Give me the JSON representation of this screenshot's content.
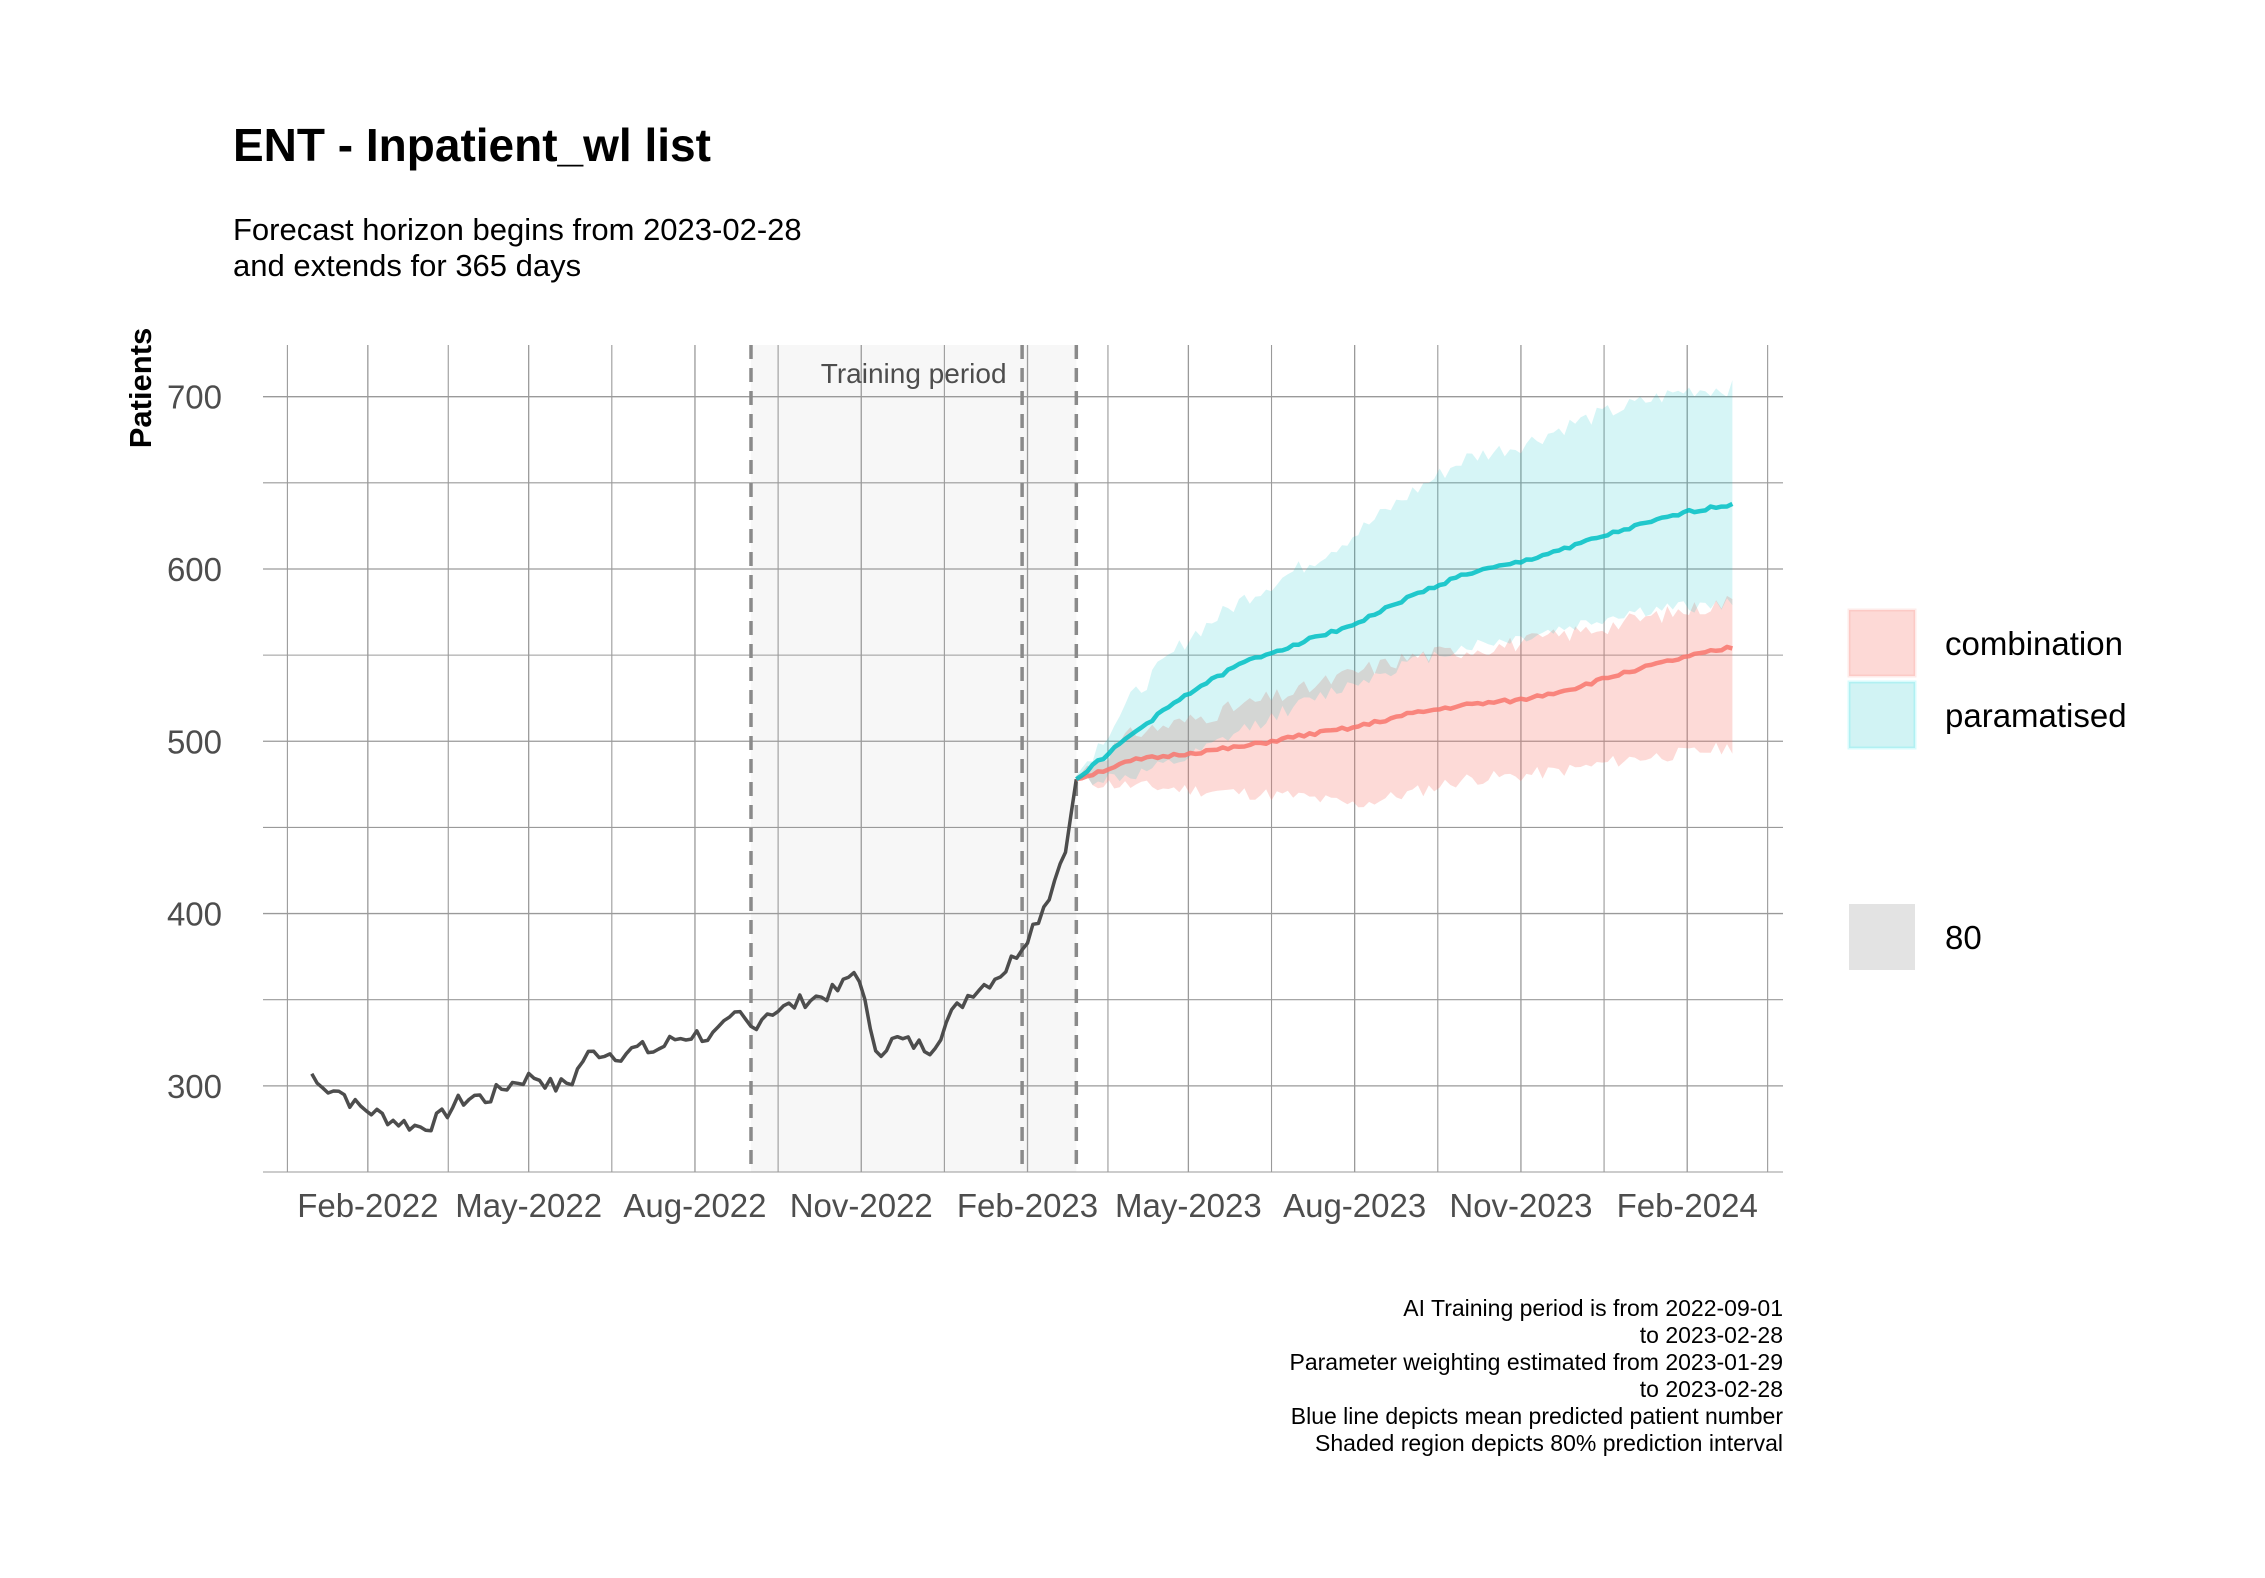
{
  "title": "ENT - Inpatient_wl list",
  "subtitle_lines": [
    "Forecast horizon begins from 2023-02-28",
    "and extends for 365 days"
  ],
  "caption_lines": [
    "AI Training period is from 2022-09-01",
    "to 2023-02-28",
    "Parameter weighting estimated from 2023-01-29",
    "to 2023-02-28",
    "Blue line depicts mean predicted patient number",
    "Shaded region depicts 80% prediction interval"
  ],
  "chart_data": {
    "type": "line",
    "title": "ENT - Inpatient_wl list",
    "xlabel": "",
    "ylabel": "Patients",
    "x_axis": "date",
    "xlim": [
      "2021-12-05",
      "2024-03-25"
    ],
    "ylim": [
      250,
      730
    ],
    "x_ticks": [
      "2022-02-01",
      "2022-05-01",
      "2022-08-01",
      "2022-11-01",
      "2023-02-01",
      "2023-05-01",
      "2023-08-01",
      "2023-11-01",
      "2024-02-01"
    ],
    "x_tick_labels": [
      "Feb-2022",
      "May-2022",
      "Aug-2022",
      "Nov-2022",
      "Feb-2023",
      "May-2023",
      "Aug-2023",
      "Nov-2023",
      "Feb-2024"
    ],
    "y_ticks": [
      300,
      400,
      500,
      600,
      700
    ],
    "grid": true,
    "annotation": {
      "text": "Training period",
      "region": [
        "2022-09-01",
        "2023-02-28"
      ],
      "vlines": [
        "2022-09-01",
        "2023-01-29",
        "2023-02-28"
      ]
    },
    "historical": {
      "color": "#4d4d4d",
      "points": [
        [
          "2022-01-01",
          307
        ],
        [
          "2022-01-06",
          298
        ],
        [
          "2022-01-12",
          300
        ],
        [
          "2022-01-18",
          296
        ],
        [
          "2022-01-24",
          289
        ],
        [
          "2022-02-01",
          286
        ],
        [
          "2022-02-08",
          283
        ],
        [
          "2022-02-15",
          280
        ],
        [
          "2022-02-22",
          278
        ],
        [
          "2022-03-01",
          276
        ],
        [
          "2022-03-08",
          278
        ],
        [
          "2022-03-15",
          283
        ],
        [
          "2022-03-22",
          290
        ],
        [
          "2022-04-01",
          294
        ],
        [
          "2022-04-08",
          292
        ],
        [
          "2022-04-15",
          298
        ],
        [
          "2022-04-25",
          303
        ],
        [
          "2022-05-05",
          306
        ],
        [
          "2022-05-15",
          299
        ],
        [
          "2022-05-25",
          303
        ],
        [
          "2022-06-01",
          317
        ],
        [
          "2022-06-10",
          320
        ],
        [
          "2022-06-20",
          318
        ],
        [
          "2022-07-01",
          322
        ],
        [
          "2022-07-10",
          320
        ],
        [
          "2022-07-20",
          327
        ],
        [
          "2022-08-01",
          330
        ],
        [
          "2022-08-10",
          328
        ],
        [
          "2022-08-20",
          336
        ],
        [
          "2022-08-25",
          342
        ],
        [
          "2022-09-01",
          334
        ],
        [
          "2022-09-10",
          343
        ],
        [
          "2022-09-20",
          345
        ],
        [
          "2022-10-01",
          350
        ],
        [
          "2022-10-10",
          352
        ],
        [
          "2022-10-20",
          356
        ],
        [
          "2022-10-28",
          366
        ],
        [
          "2022-11-01",
          363
        ],
        [
          "2022-11-05",
          332
        ],
        [
          "2022-11-10",
          320
        ],
        [
          "2022-11-20",
          327
        ],
        [
          "2022-12-01",
          324
        ],
        [
          "2022-12-10",
          322
        ],
        [
          "2022-12-20",
          340
        ],
        [
          "2023-01-01",
          355
        ],
        [
          "2023-01-10",
          360
        ],
        [
          "2023-01-20",
          368
        ],
        [
          "2023-01-29",
          382
        ],
        [
          "2023-02-07",
          398
        ],
        [
          "2023-02-15",
          416
        ],
        [
          "2023-02-20",
          433
        ],
        [
          "2023-02-24",
          447
        ],
        [
          "2023-02-28",
          478
        ]
      ]
    },
    "series": [
      {
        "name": "combination",
        "color": "#F8766D",
        "mean": [
          [
            "2023-02-28",
            478
          ],
          [
            "2023-04-01",
            489
          ],
          [
            "2023-05-01",
            493
          ],
          [
            "2023-06-01",
            497
          ],
          [
            "2023-07-01",
            503
          ],
          [
            "2023-08-01",
            508
          ],
          [
            "2023-09-01",
            516
          ],
          [
            "2023-10-01",
            521
          ],
          [
            "2023-11-01",
            524
          ],
          [
            "2023-12-01",
            531
          ],
          [
            "2024-01-01",
            541
          ],
          [
            "2024-02-01",
            549
          ],
          [
            "2024-02-28",
            555
          ]
        ],
        "lower": [
          [
            "2023-02-28",
            477
          ],
          [
            "2023-04-01",
            474
          ],
          [
            "2023-05-01",
            472
          ],
          [
            "2023-06-01",
            470
          ],
          [
            "2023-07-01",
            468
          ],
          [
            "2023-08-01",
            463
          ],
          [
            "2023-09-01",
            470
          ],
          [
            "2023-10-01",
            478
          ],
          [
            "2023-11-01",
            480
          ],
          [
            "2023-12-01",
            484
          ],
          [
            "2024-01-01",
            490
          ],
          [
            "2024-02-01",
            493
          ],
          [
            "2024-02-28",
            497
          ]
        ],
        "upper": [
          [
            "2023-02-28",
            480
          ],
          [
            "2023-04-01",
            505
          ],
          [
            "2023-05-01",
            512
          ],
          [
            "2023-06-01",
            521
          ],
          [
            "2023-07-01",
            529
          ],
          [
            "2023-08-01",
            540
          ],
          [
            "2023-09-01",
            549
          ],
          [
            "2023-10-01",
            553
          ],
          [
            "2023-11-01",
            557
          ],
          [
            "2023-12-01",
            563
          ],
          [
            "2024-01-01",
            570
          ],
          [
            "2024-02-01",
            576
          ],
          [
            "2024-02-28",
            582
          ]
        ]
      },
      {
        "name": "paramatised",
        "color": "#00BFC4",
        "mean": [
          [
            "2023-02-28",
            478
          ],
          [
            "2023-04-01",
            505
          ],
          [
            "2023-05-01",
            528
          ],
          [
            "2023-06-01",
            546
          ],
          [
            "2023-07-01",
            557
          ],
          [
            "2023-08-01",
            568
          ],
          [
            "2023-09-01",
            584
          ],
          [
            "2023-10-01",
            597
          ],
          [
            "2023-11-01",
            604
          ],
          [
            "2023-12-01",
            614
          ],
          [
            "2024-01-01",
            624
          ],
          [
            "2024-02-01",
            633
          ],
          [
            "2024-02-28",
            638
          ]
        ],
        "lower": [
          [
            "2023-02-28",
            477
          ],
          [
            "2023-04-01",
            480
          ],
          [
            "2023-05-01",
            490
          ],
          [
            "2023-06-01",
            507
          ],
          [
            "2023-07-01",
            521
          ],
          [
            "2023-08-01",
            534
          ],
          [
            "2023-09-01",
            546
          ],
          [
            "2023-10-01",
            555
          ],
          [
            "2023-11-01",
            560
          ],
          [
            "2023-12-01",
            567
          ],
          [
            "2024-01-01",
            575
          ],
          [
            "2024-02-01",
            578
          ],
          [
            "2024-02-28",
            580
          ]
        ],
        "upper": [
          [
            "2023-02-28",
            480
          ],
          [
            "2023-04-01",
            527
          ],
          [
            "2023-05-01",
            560
          ],
          [
            "2023-06-01",
            583
          ],
          [
            "2023-07-01",
            600
          ],
          [
            "2023-08-01",
            620
          ],
          [
            "2023-09-01",
            644
          ],
          [
            "2023-10-01",
            664
          ],
          [
            "2023-11-01",
            672
          ],
          [
            "2023-12-01",
            685
          ],
          [
            "2024-01-01",
            695
          ],
          [
            "2024-02-01",
            704
          ],
          [
            "2024-02-28",
            705
          ]
        ]
      }
    ],
    "legend": {
      "placement": "right",
      "level_title": "",
      "level_items": [
        "80"
      ]
    }
  }
}
